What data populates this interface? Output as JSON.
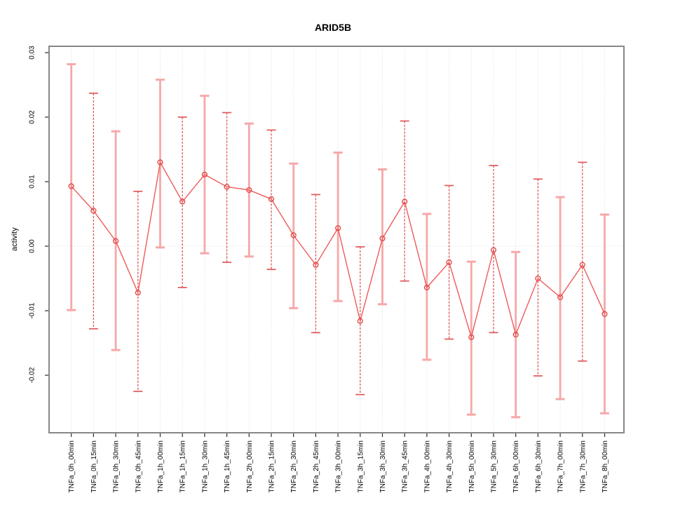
{
  "chart_data": {
    "type": "line",
    "title": "ARID5B",
    "xlabel": "",
    "ylabel": "activity",
    "marker": "open-circle",
    "error_bars": true,
    "legend": "none",
    "grid": {
      "vertical": "dotted at each category",
      "horizontal": "dotted at y=0 only"
    },
    "ylim": [
      -0.029,
      0.031
    ],
    "yticks": [
      "-0.02",
      "-0.01",
      "0.00",
      "0.01",
      "0.02",
      "0.03"
    ],
    "ytick_values": [
      -0.02,
      -0.01,
      0.0,
      0.01,
      0.02,
      0.03
    ],
    "categories": [
      "TNFa_0h_00min",
      "TNFa_0h_15min",
      "TNFa_0h_30min",
      "TNFa_0h_45min",
      "TNFa_1h_00min",
      "TNFa_1h_15min",
      "TNFa_1h_30min",
      "TNFa_1h_45min",
      "TNFa_2h_00min",
      "TNFa_2h_15min",
      "TNFa_2h_30min",
      "TNFa_2h_45min",
      "TNFa_3h_00min",
      "TNFa_3h_15min",
      "TNFa_3h_30min",
      "TNFa_3h_45min",
      "TNFa_4h_00min",
      "TNFa_4h_30min",
      "TNFa_5h_00min",
      "TNFa_5h_30min",
      "TNFa_6h_00min",
      "TNFa_6h_30min",
      "TNFa_7h_00min",
      "TNFa_7h_30min",
      "TNFa_8h_00min"
    ],
    "series": [
      {
        "name": "activity",
        "values": [
          0.0093,
          0.0055,
          0.0008,
          -0.0072,
          0.013,
          0.0069,
          0.0111,
          0.0092,
          0.0087,
          0.0073,
          0.0017,
          -0.0029,
          0.0028,
          -0.0116,
          0.0012,
          0.0069,
          -0.0064,
          -0.0025,
          -0.0141,
          -0.0006,
          -0.0137,
          -0.005,
          -0.0079,
          -0.0029,
          -0.0105
        ],
        "error_upper": [
          0.0282,
          0.0237,
          0.0178,
          0.0085,
          0.0258,
          0.02,
          0.0233,
          0.0207,
          0.019,
          0.018,
          0.0128,
          0.008,
          0.0145,
          -0.0001,
          0.0119,
          0.0194,
          0.005,
          0.0094,
          -0.0024,
          0.0125,
          -0.0009,
          0.0104,
          0.0076,
          0.013,
          0.0049
        ],
        "error_lower": [
          -0.0099,
          -0.0128,
          -0.0161,
          -0.0225,
          -0.0002,
          -0.0064,
          -0.0011,
          -0.0025,
          -0.0016,
          -0.0036,
          -0.0096,
          -0.0134,
          -0.0085,
          -0.023,
          -0.009,
          -0.0054,
          -0.0176,
          -0.0144,
          -0.0261,
          -0.0134,
          -0.0265,
          -0.0201,
          -0.0237,
          -0.0178,
          -0.0259
        ]
      }
    ],
    "colors": {
      "line": "#ee5b5b",
      "point": "#e14b4b",
      "bar_light": "#f6a8a8",
      "bar_dark": "#e25757",
      "grid": "#d9d9d9",
      "box": "#878787",
      "tick": "#2a2a2a",
      "text": "#000000"
    }
  }
}
